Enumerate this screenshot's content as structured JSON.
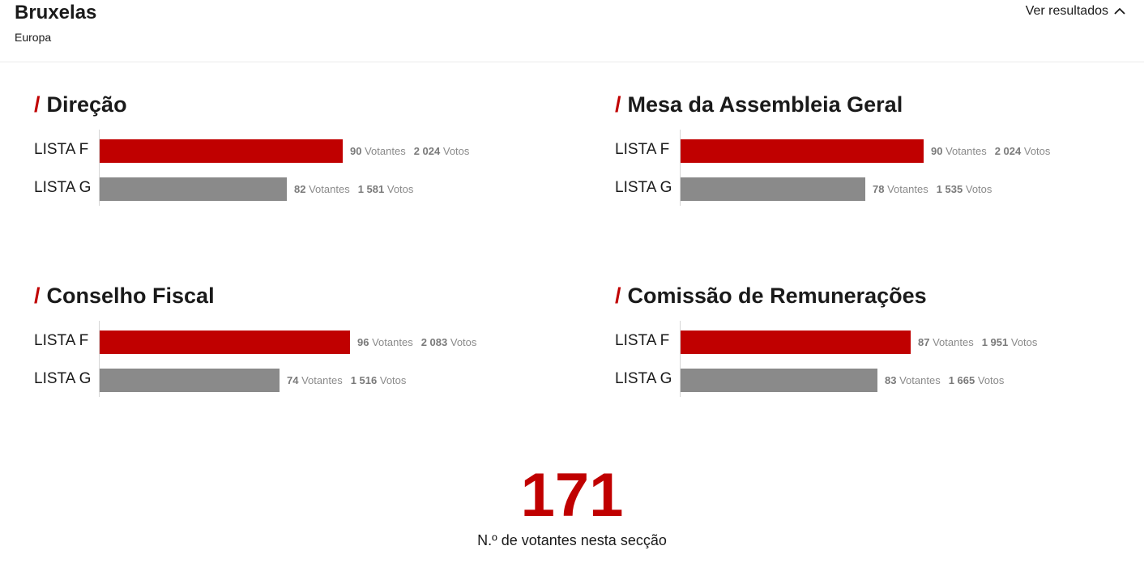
{
  "header": {
    "title": "Bruxelas",
    "subtitle": "Europa",
    "toggle_label": "Ver resultados",
    "toggle_icon": "chevron-up-icon"
  },
  "colors": {
    "accent": "#c00000",
    "secondary": "#8a8a8a"
  },
  "sections": [
    {
      "title": "Direção",
      "rows": [
        {
          "label": "LISTA F",
          "votantes": "90",
          "votantes_label": "Votantes",
          "votos": "2 024",
          "votos_label": "Votos",
          "fraction": 0.96
        },
        {
          "label": "LISTA G",
          "votantes": "82",
          "votantes_label": "Votantes",
          "votos": "1 581",
          "votos_label": "Votos",
          "fraction": 0.74
        }
      ]
    },
    {
      "title": "Mesa da Assembleia Geral",
      "rows": [
        {
          "label": "LISTA F",
          "votantes": "90",
          "votantes_label": "Votantes",
          "votos": "2 024",
          "votos_label": "Votos",
          "fraction": 0.96
        },
        {
          "label": "LISTA G",
          "votantes": "78",
          "votantes_label": "Votantes",
          "votos": "1 535",
          "votos_label": "Votos",
          "fraction": 0.73
        }
      ]
    },
    {
      "title": "Conselho Fiscal",
      "rows": [
        {
          "label": "LISTA F",
          "votantes": "96",
          "votantes_label": "Votantes",
          "votos": "2 083",
          "votos_label": "Votos",
          "fraction": 0.99
        },
        {
          "label": "LISTA G",
          "votantes": "74",
          "votantes_label": "Votantes",
          "votos": "1 516",
          "votos_label": "Votos",
          "fraction": 0.71
        }
      ]
    },
    {
      "title": "Comissão de Remunerações",
      "rows": [
        {
          "label": "LISTA F",
          "votantes": "87",
          "votantes_label": "Votantes",
          "votos": "1 951",
          "votos_label": "Votos",
          "fraction": 0.91
        },
        {
          "label": "LISTA G",
          "votantes": "83",
          "votantes_label": "Votantes",
          "votos": "1 665",
          "votos_label": "Votos",
          "fraction": 0.78
        }
      ]
    }
  ],
  "total": {
    "value": "171",
    "label": "N.º de votantes nesta secção"
  }
}
